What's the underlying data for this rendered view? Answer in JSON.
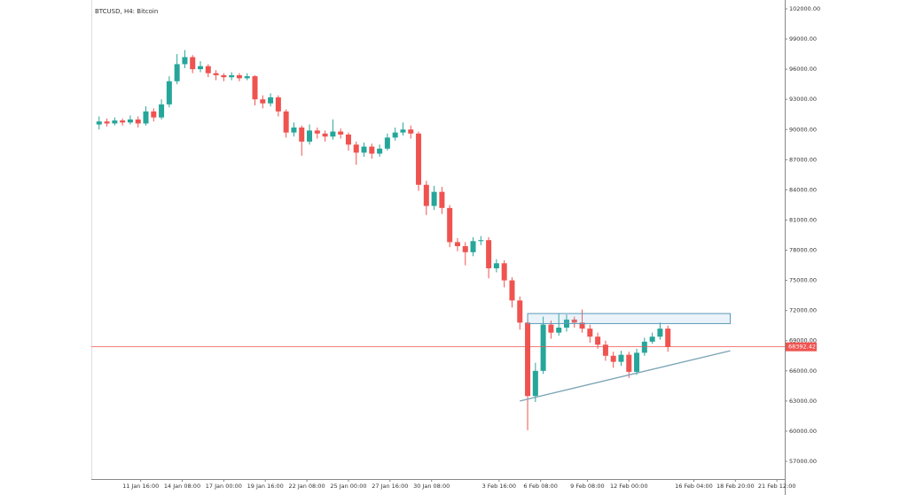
{
  "chart_data": {
    "type": "candlestick",
    "title": "BTCUSD, H4: Bitcoin",
    "x": [
      "9 Jan 00:00",
      "9 Jan 12:00",
      "10 Jan 00:00",
      "10 Jan 12:00",
      "11 Jan 00:00",
      "11 Jan 12:00",
      "12 Jan 00:00",
      "12 Jan 12:00",
      "13 Jan 00:00",
      "13 Jan 12:00",
      "14 Jan 00:00",
      "14 Jan 12:00",
      "15 Jan 00:00",
      "15 Jan 12:00",
      "16 Jan 00:00",
      "16 Jan 12:00",
      "17 Jan 00:00",
      "17 Jan 12:00",
      "18 Jan 00:00",
      "18 Jan 12:00",
      "19 Jan 00:00",
      "19 Jan 12:00",
      "20 Jan 00:00",
      "20 Jan 12:00",
      "21 Jan 00:00",
      "21 Jan 12:00",
      "22 Jan 00:00",
      "22 Jan 12:00",
      "23 Jan 00:00",
      "23 Jan 12:00",
      "24 Jan 00:00",
      "24 Jan 12:00",
      "25 Jan 00:00",
      "25 Jan 12:00",
      "26 Jan 00:00",
      "26 Jan 12:00",
      "27 Jan 00:00",
      "27 Jan 12:00",
      "28 Jan 00:00",
      "28 Jan 12:00",
      "29 Jan 00:00",
      "29 Jan 12:00",
      "30 Jan 00:00",
      "30 Jan 12:00",
      "31 Jan 00:00",
      "31 Jan 12:00",
      "1 Feb 00:00",
      "1 Feb 12:00",
      "2 Feb 00:00",
      "2 Feb 12:00",
      "3 Feb 00:00",
      "3 Feb 12:00",
      "4 Feb 00:00",
      "4 Feb 12:00",
      "5 Feb 00:00",
      "5 Feb 12:00",
      "6 Feb 00:00",
      "6 Feb 12:00",
      "7 Feb 00:00",
      "7 Feb 12:00",
      "8 Feb 00:00",
      "8 Feb 12:00",
      "9 Feb 00:00",
      "9 Feb 12:00",
      "10 Feb 00:00",
      "10 Feb 12:00",
      "11 Feb 00:00",
      "11 Feb 12:00",
      "12 Feb 00:00",
      "12 Feb 12:00",
      "13 Feb 00:00",
      "13 Feb 12:00",
      "14 Feb 00:00",
      "14 Feb 12:00"
    ],
    "open": [
      90500,
      90800,
      90600,
      90900,
      90700,
      91000,
      90600,
      91800,
      91200,
      92500,
      94800,
      96500,
      97200,
      96000,
      96300,
      95600,
      95400,
      95200,
      95400,
      95100,
      95300,
      93000,
      92600,
      93200,
      91800,
      89700,
      90200,
      88800,
      89900,
      89600,
      89300,
      89800,
      89500,
      88500,
      87700,
      88300,
      87600,
      88100,
      89200,
      89700,
      90000,
      89600,
      84500,
      82400,
      83800,
      82200,
      78800,
      78400,
      77800,
      78900,
      79000,
      76200,
      76700,
      75000,
      73000,
      70800,
      63500,
      66000,
      70600,
      69800,
      70300,
      71100,
      70800,
      70200,
      69400,
      68600,
      67500,
      66900,
      67600,
      65900,
      67800,
      68900,
      69400,
      70200
    ],
    "high": [
      91300,
      91100,
      91200,
      91100,
      91400,
      91300,
      92300,
      92100,
      93000,
      95300,
      97500,
      97900,
      97400,
      96800,
      96500,
      95900,
      95600,
      95700,
      95600,
      95600,
      95400,
      93400,
      93600,
      93400,
      92000,
      90700,
      90400,
      90500,
      90200,
      89900,
      91000,
      90100,
      89700,
      88800,
      88700,
      88600,
      88500,
      89600,
      90200,
      90700,
      90400,
      89800,
      84900,
      84400,
      84300,
      82500,
      79200,
      78800,
      79300,
      79400,
      79300,
      77100,
      77000,
      75300,
      73400,
      71200,
      66800,
      71400,
      71000,
      71700,
      71600,
      71400,
      72100,
      70600,
      69800,
      69000,
      67900,
      68000,
      67900,
      68200,
      69300,
      69800,
      70800,
      70500
    ],
    "low": [
      90000,
      90300,
      90400,
      90400,
      90500,
      90200,
      90400,
      90800,
      91000,
      92200,
      94500,
      96100,
      95600,
      95700,
      95200,
      94900,
      94800,
      94900,
      94800,
      94900,
      92400,
      92100,
      92300,
      91300,
      89200,
      89300,
      87400,
      88500,
      89100,
      88800,
      89000,
      89100,
      87900,
      86500,
      87300,
      87100,
      87300,
      87900,
      88900,
      89400,
      89100,
      83900,
      81500,
      82000,
      81600,
      78300,
      77900,
      76500,
      77400,
      78500,
      75200,
      75800,
      74300,
      72300,
      70100,
      60100,
      62900,
      65700,
      69200,
      69500,
      69900,
      70300,
      69800,
      68800,
      68200,
      67000,
      66300,
      66500,
      65300,
      65600,
      67500,
      68700,
      69100,
      67900
    ],
    "close": [
      90800,
      90600,
      90900,
      90700,
      91000,
      90600,
      91800,
      91200,
      92500,
      94800,
      96500,
      97200,
      96000,
      96300,
      95600,
      95400,
      95200,
      95400,
      95100,
      95300,
      93000,
      92600,
      93200,
      91800,
      89700,
      90200,
      88800,
      89900,
      89600,
      89300,
      89800,
      89500,
      88500,
      87700,
      88300,
      87600,
      88100,
      89200,
      89700,
      90000,
      89600,
      84500,
      82400,
      83800,
      82200,
      78800,
      78400,
      77800,
      78900,
      79000,
      76200,
      76700,
      75000,
      73000,
      70800,
      63500,
      66000,
      70600,
      69800,
      70300,
      71100,
      70800,
      70200,
      69400,
      68600,
      67500,
      66900,
      67600,
      65900,
      67800,
      68900,
      69400,
      70200,
      68392.42
    ],
    "up_color": "#26a69a",
    "down_color": "#ef5350",
    "xlim": [
      "8 Jan 12:00",
      "22 Feb 00:00"
    ],
    "xticks": [
      "11 Jan 16:00",
      "14 Jan 08:00",
      "17 Jan 00:00",
      "19 Jan 16:00",
      "22 Jan 08:00",
      "25 Jan 00:00",
      "27 Jan 16:00",
      "30 Jan 08:00",
      "3 Feb 16:00",
      "6 Feb 08:00",
      "9 Feb 08:00",
      "12 Feb 00:00",
      "16 Feb 04:00",
      "18 Feb 20:00",
      "21 Feb 12:00"
    ],
    "ylim": [
      55240,
      102880
    ],
    "yticks": [
      {
        "value": 57000,
        "label": "57000.00"
      },
      {
        "value": 60000,
        "label": "60000.00"
      },
      {
        "value": 63000,
        "label": "63000.00"
      },
      {
        "value": 66000,
        "label": "66000.00"
      },
      {
        "value": 69000,
        "label": "69000.00"
      },
      {
        "value": 72000,
        "label": "72000.00"
      },
      {
        "value": 75000,
        "label": "75000.00"
      },
      {
        "value": 78000,
        "label": "78000.00"
      },
      {
        "value": 81000,
        "label": "81000.00"
      },
      {
        "value": 84000,
        "label": "84000.00"
      },
      {
        "value": 87000,
        "label": "87000.00"
      },
      {
        "value": 90000,
        "label": "90000.00"
      },
      {
        "value": 93000,
        "label": "93000.00"
      },
      {
        "value": 96000,
        "label": "96000.00"
      },
      {
        "value": 99000,
        "label": "99000.00"
      },
      {
        "value": 102000,
        "label": "102000.00"
      }
    ],
    "resistance_zone": {
      "x": [
        "5 Feb 12:00",
        "18 Feb 12:00"
      ],
      "y": [
        70700,
        71700
      ]
    },
    "trendline": {
      "x": [
        "5 Feb 00:00",
        "18 Feb 12:00"
      ],
      "y": [
        63000,
        68000
      ]
    }
  }
}
